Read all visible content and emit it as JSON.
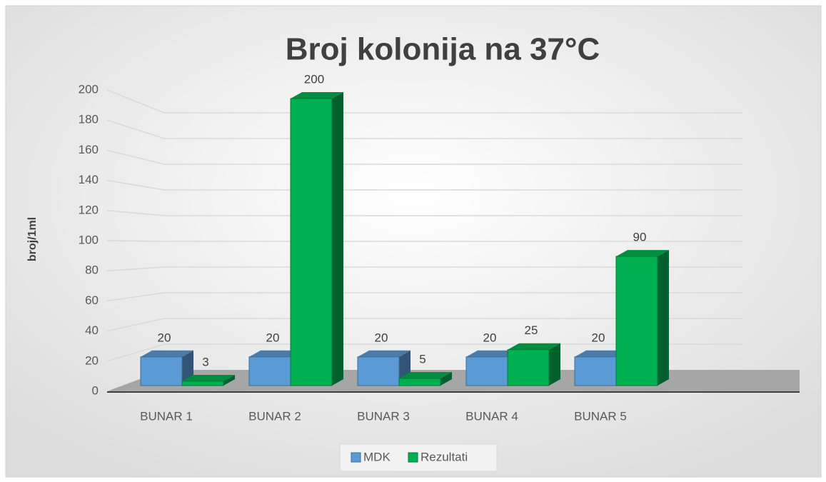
{
  "chart_data": {
    "type": "bar3d",
    "title": "Broj kolonija na 37°C",
    "y_label": "broj/1ml",
    "categories": [
      "BUNAR 1",
      "BUNAR 2",
      "BUNAR 3",
      "BUNAR 4",
      "BUNAR 5"
    ],
    "series": [
      {
        "name": "MDK",
        "color": "#5b9bd5",
        "values": [
          20,
          20,
          20,
          20,
          20
        ]
      },
      {
        "name": "Rezultati",
        "color": "#00b050",
        "values": [
          3,
          200,
          5,
          25,
          90
        ]
      }
    ],
    "ylim": [
      0,
      200
    ],
    "yticks": [
      0,
      20,
      40,
      60,
      80,
      100,
      120,
      140,
      160,
      180,
      200
    ],
    "grid": true,
    "legend": "bottom"
  }
}
